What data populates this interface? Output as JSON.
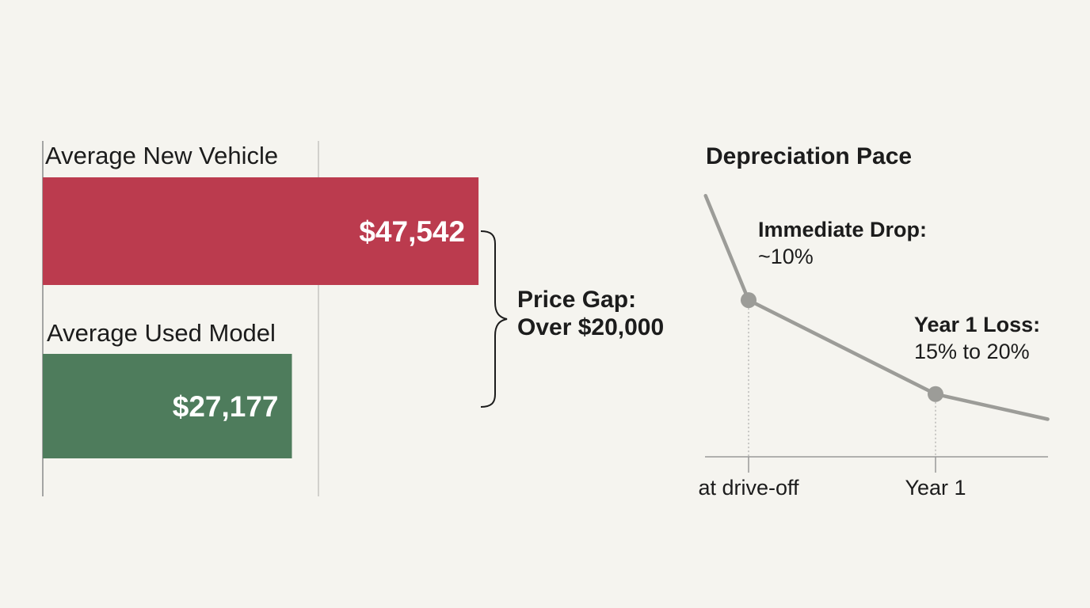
{
  "colors": {
    "new_bar": "#bb3b4e",
    "used_bar": "#4e7c5c",
    "line": "#9c9c98",
    "axis": "#999999",
    "text": "#1c1c1c"
  },
  "chart_data": [
    {
      "type": "bar",
      "orientation": "horizontal",
      "categories": [
        "Average New Vehicle",
        "Average Used Model"
      ],
      "values": [
        47542,
        27177
      ],
      "value_labels": [
        "$47,542",
        "$27,177"
      ],
      "colors": [
        "#bb3b4e",
        "#4e7c5c"
      ],
      "xlim": [
        0,
        63000
      ],
      "grid": false,
      "annotation": {
        "type": "brace",
        "line1": "Price Gap:",
        "line2": "Over $20,000"
      }
    },
    {
      "type": "line",
      "title": "Depreciation Pace",
      "x_ticks": [
        "at drive-off",
        "Year 1"
      ],
      "points": [
        {
          "x": -0.23,
          "y": 100
        },
        {
          "x": 0,
          "y": 90
        },
        {
          "x": 1,
          "y": 81
        },
        {
          "x": 1.6,
          "y": 78.6
        }
      ],
      "markers": [
        {
          "x": 0,
          "y": 90,
          "label": "Immediate Drop:",
          "value": "~10%"
        },
        {
          "x": 1,
          "y": 81,
          "label": "Year 1 Loss:",
          "value": "15% to 20%"
        }
      ],
      "ylim": [
        75,
        101
      ],
      "grid": false
    }
  ]
}
